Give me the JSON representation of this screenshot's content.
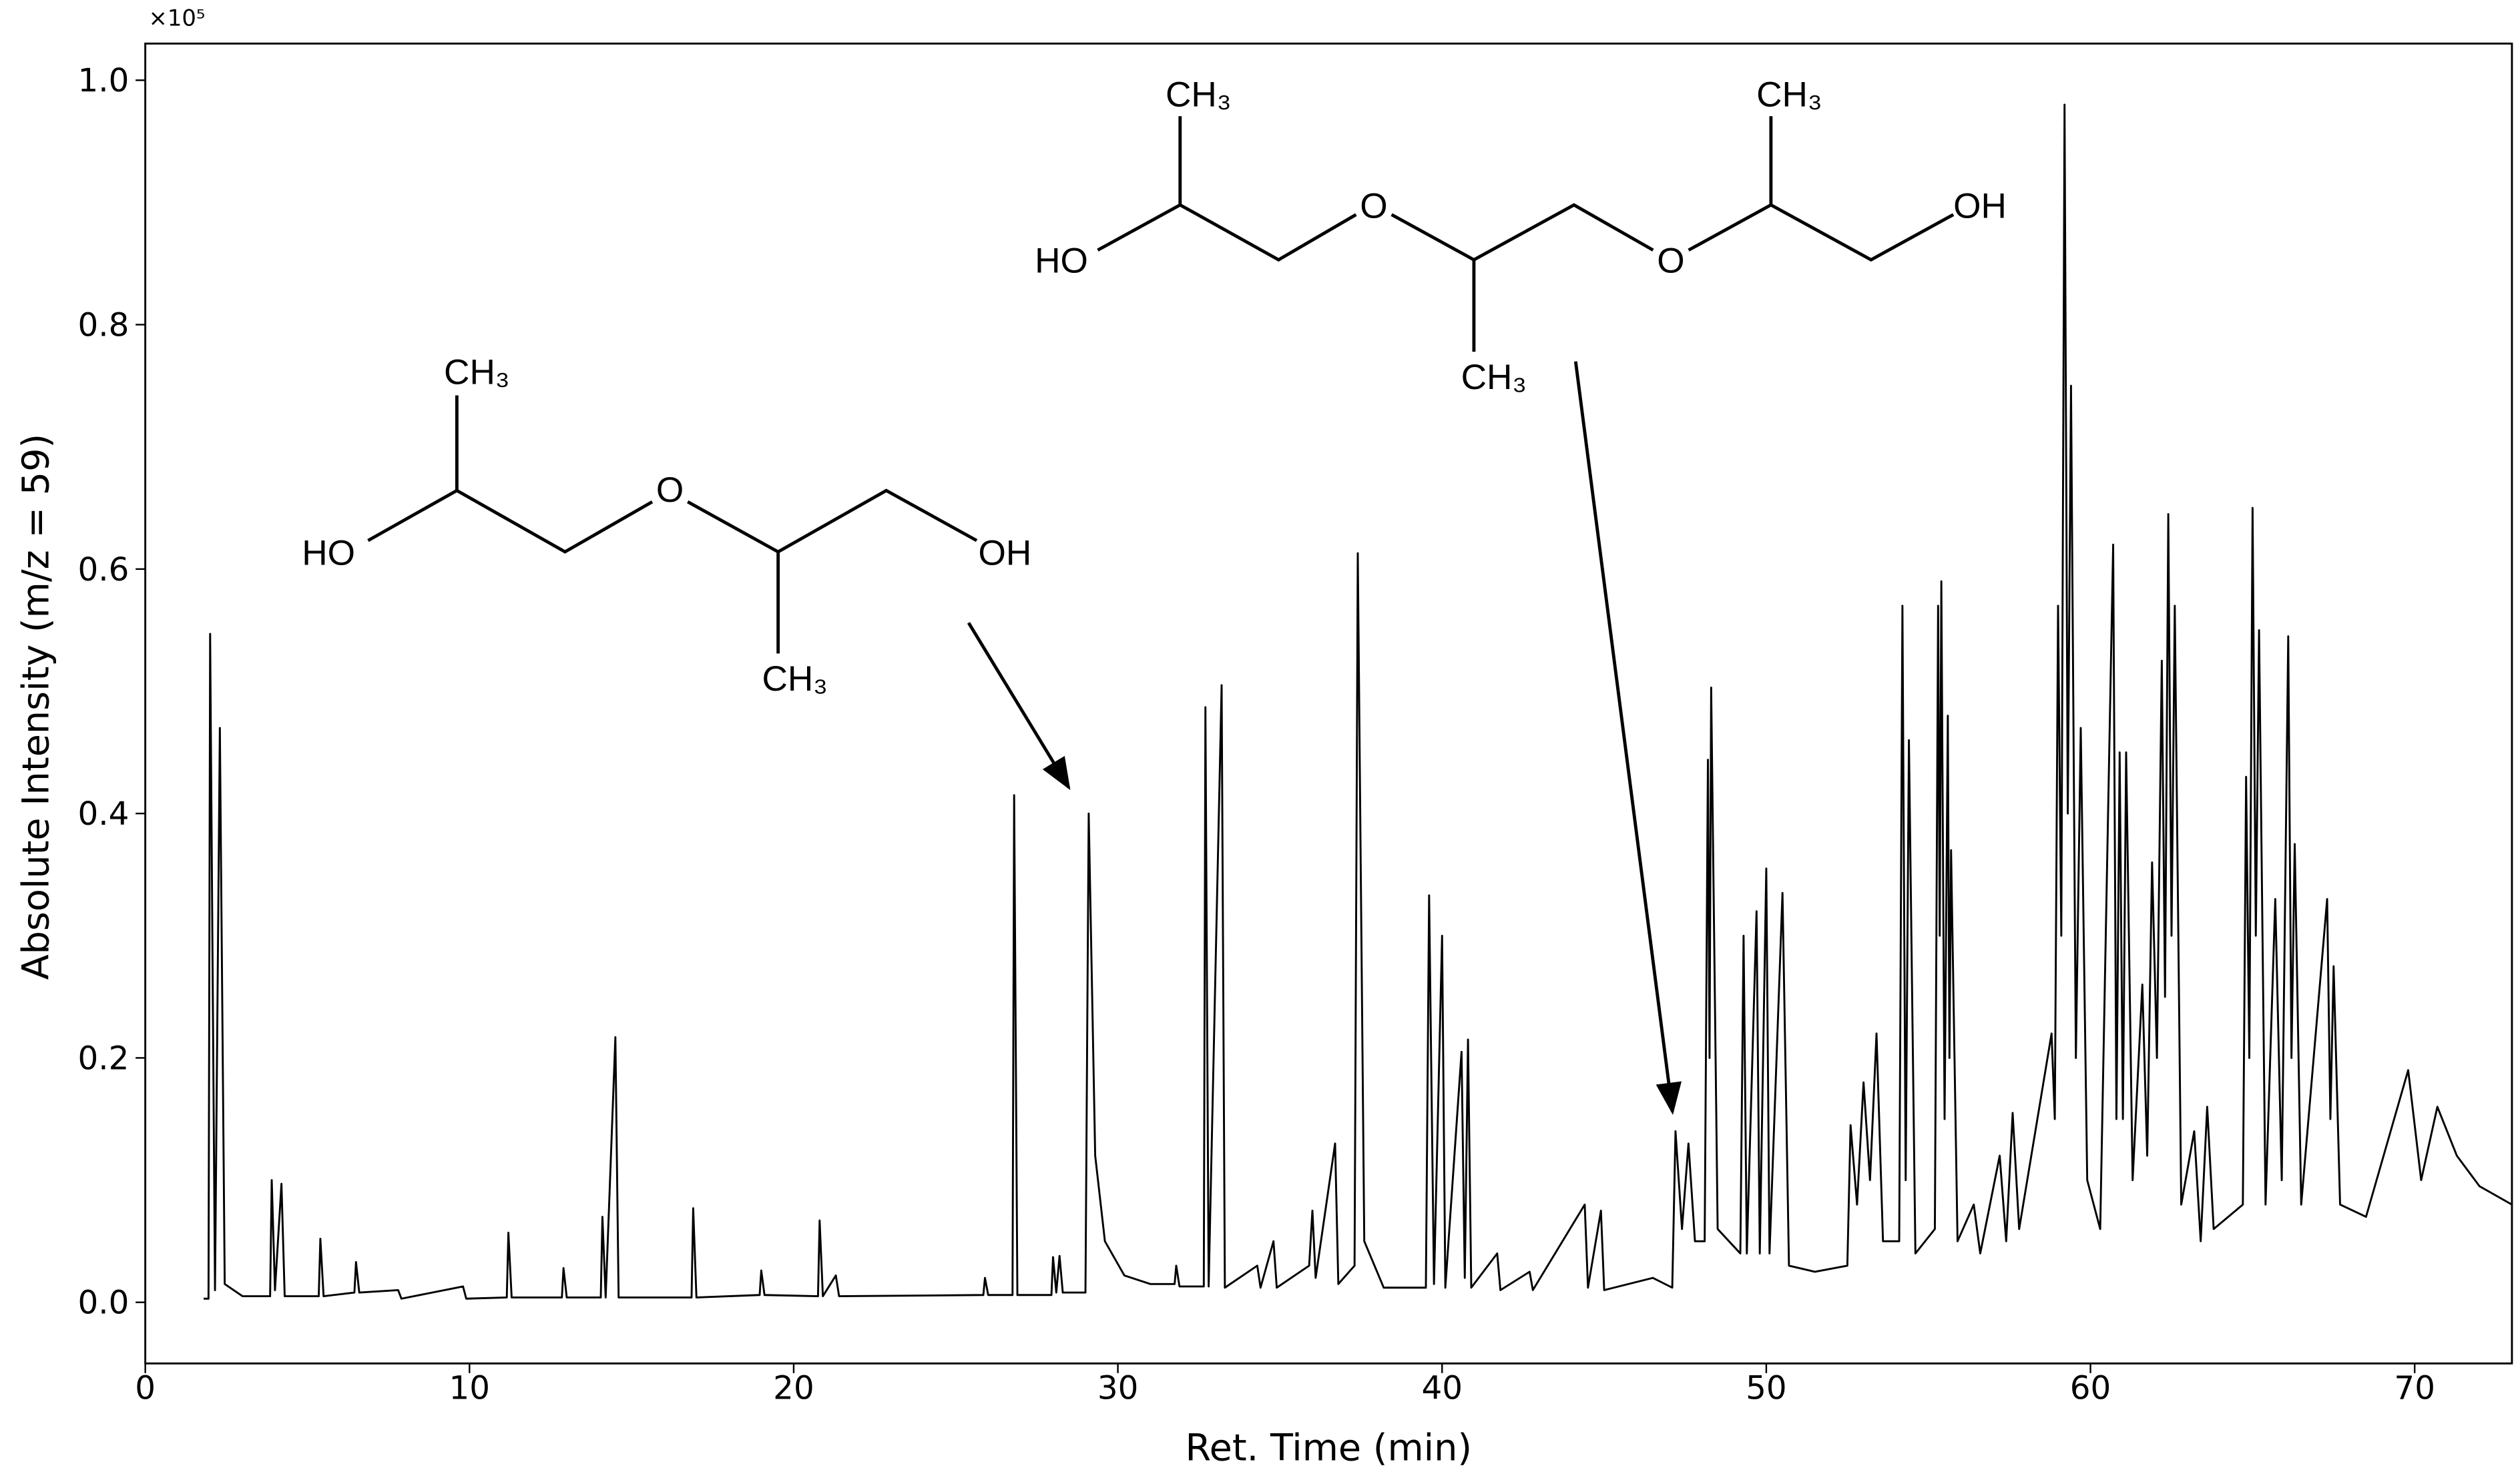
{
  "chart_data": {
    "type": "line",
    "xlabel": "Ret. Time (min)",
    "ylabel": "Absolute Intensity (m/z = 59)",
    "y_offset_label": "×10⁵",
    "color": "#000000",
    "xlim": [
      0,
      73
    ],
    "ylim": [
      -0.05,
      1.03
    ],
    "xticks": [
      0,
      10,
      20,
      30,
      40,
      50,
      60,
      70
    ],
    "yticks": [
      {
        "value": 0,
        "label": "0.0"
      },
      {
        "value": 0.2,
        "label": "0.2"
      },
      {
        "value": 0.4,
        "label": "0.4"
      },
      {
        "value": 0.6,
        "label": "0.6"
      },
      {
        "value": 0.8,
        "label": "0.8"
      },
      {
        "value": 1,
        "label": "1.0"
      }
    ],
    "annotations": [
      {
        "atoms": [
          "CH₃",
          "HO",
          "O",
          "OH",
          "CH₃"
        ]
      },
      {
        "atoms": [
          "CH₃",
          "HO",
          "O",
          "O",
          "OH",
          "CH₃",
          "CH₃"
        ]
      }
    ],
    "x": [
      1.8,
      1.95,
      2.0,
      2.15,
      2.3,
      2.45,
      3.0,
      3.85,
      3.9,
      4.0,
      4.2,
      4.3,
      5.35,
      5.4,
      5.5,
      6.45,
      6.5,
      6.6,
      7.8,
      7.9,
      9.8,
      9.9,
      11.15,
      11.2,
      11.3,
      12.85,
      12.9,
      13.0,
      14.05,
      14.1,
      14.2,
      14.5,
      14.6,
      16.85,
      16.9,
      17.0,
      18.95,
      19.0,
      19.1,
      20.75,
      20.8,
      20.9,
      21.3,
      21.4,
      25.85,
      25.9,
      26.0,
      26.75,
      26.8,
      26.9,
      27.95,
      28.0,
      28.1,
      28.2,
      28.3,
      29.0,
      29.1,
      29.3,
      29.6,
      30.2,
      31.0,
      31.75,
      31.8,
      31.9,
      32.65,
      32.7,
      32.8,
      33.2,
      33.3,
      34.3,
      34.4,
      34.8,
      34.9,
      35.9,
      36.0,
      36.1,
      36.7,
      36.8,
      37.3,
      37.4,
      37.6,
      38.2,
      39.5,
      39.6,
      39.75,
      40.0,
      40.1,
      40.6,
      40.7,
      40.8,
      40.9,
      41.7,
      41.8,
      42.7,
      42.8,
      44.4,
      44.5,
      44.9,
      45.0,
      46.5,
      47.1,
      47.2,
      47.4,
      47.6,
      47.8,
      48.1,
      48.2,
      48.25,
      48.3,
      48.5,
      49.2,
      49.3,
      49.4,
      49.7,
      49.8,
      50.0,
      50.1,
      50.5,
      50.7,
      51.5,
      52.5,
      52.6,
      52.8,
      53.0,
      53.2,
      53.4,
      53.6,
      54.1,
      54.2,
      54.3,
      54.4,
      54.6,
      55.2,
      55.3,
      55.35,
      55.4,
      55.5,
      55.6,
      55.65,
      55.7,
      55.9,
      56.4,
      56.6,
      57.2,
      57.4,
      57.6,
      57.8,
      58.8,
      58.9,
      59.0,
      59.1,
      59.2,
      59.3,
      59.4,
      59.55,
      59.7,
      59.9,
      60.3,
      60.7,
      60.8,
      60.9,
      61.0,
      61.1,
      61.3,
      61.6,
      61.75,
      61.9,
      62.05,
      62.2,
      62.3,
      62.4,
      62.5,
      62.6,
      62.8,
      63.2,
      63.4,
      63.6,
      63.8,
      64.7,
      64.8,
      64.9,
      65.0,
      65.1,
      65.2,
      65.4,
      65.7,
      65.9,
      66.1,
      66.2,
      66.3,
      66.5,
      67.3,
      67.4,
      67.5,
      67.7,
      68.5,
      69.8,
      70.2,
      70.7,
      71.3,
      72,
      73
    ],
    "values": [
      0.003,
      0.003,
      0.547,
      0.01,
      0.47,
      0.015,
      0.005,
      0.005,
      0.1,
      0.01,
      0.097,
      0.005,
      0.005,
      0.052,
      0.005,
      0.008,
      0.033,
      0.008,
      0.01,
      0.003,
      0.013,
      0.003,
      0.004,
      0.057,
      0.004,
      0.004,
      0.028,
      0.004,
      0.004,
      0.07,
      0.004,
      0.217,
      0.004,
      0.004,
      0.077,
      0.004,
      0.006,
      0.026,
      0.006,
      0.005,
      0.067,
      0.005,
      0.022,
      0.005,
      0.006,
      0.02,
      0.006,
      0.006,
      0.415,
      0.006,
      0.006,
      0.037,
      0.008,
      0.038,
      0.008,
      0.008,
      0.4,
      0.12,
      0.05,
      0.022,
      0.015,
      0.015,
      0.03,
      0.013,
      0.013,
      0.487,
      0.013,
      0.505,
      0.012,
      0.03,
      0.012,
      0.05,
      0.012,
      0.03,
      0.075,
      0.02,
      0.13,
      0.015,
      0.03,
      0.613,
      0.05,
      0.012,
      0.012,
      0.333,
      0.015,
      0.3,
      0.012,
      0.205,
      0.02,
      0.215,
      0.012,
      0.04,
      0.01,
      0.025,
      0.01,
      0.08,
      0.012,
      0.075,
      0.01,
      0.02,
      0.012,
      0.14,
      0.06,
      0.13,
      0.05,
      0.05,
      0.444,
      0.2,
      0.503,
      0.06,
      0.04,
      0.3,
      0.04,
      0.32,
      0.04,
      0.355,
      0.04,
      0.335,
      0.03,
      0.025,
      0.03,
      0.145,
      0.08,
      0.18,
      0.1,
      0.22,
      0.05,
      0.05,
      0.57,
      0.1,
      0.46,
      0.04,
      0.06,
      0.57,
      0.3,
      0.59,
      0.15,
      0.48,
      0.2,
      0.37,
      0.05,
      0.08,
      0.04,
      0.12,
      0.05,
      0.155,
      0.06,
      0.22,
      0.15,
      0.57,
      0.3,
      0.98,
      0.4,
      0.75,
      0.2,
      0.47,
      0.1,
      0.06,
      0.62,
      0.15,
      0.45,
      0.15,
      0.45,
      0.1,
      0.26,
      0.12,
      0.36,
      0.2,
      0.525,
      0.25,
      0.645,
      0.3,
      0.57,
      0.08,
      0.14,
      0.05,
      0.16,
      0.06,
      0.08,
      0.43,
      0.2,
      0.65,
      0.3,
      0.55,
      0.08,
      0.33,
      0.1,
      0.545,
      0.2,
      0.375,
      0.08,
      0.33,
      0.15,
      0.275,
      0.08,
      0.07,
      0.19,
      0.1,
      0.16,
      0.12,
      0.095,
      0.08
    ]
  }
}
